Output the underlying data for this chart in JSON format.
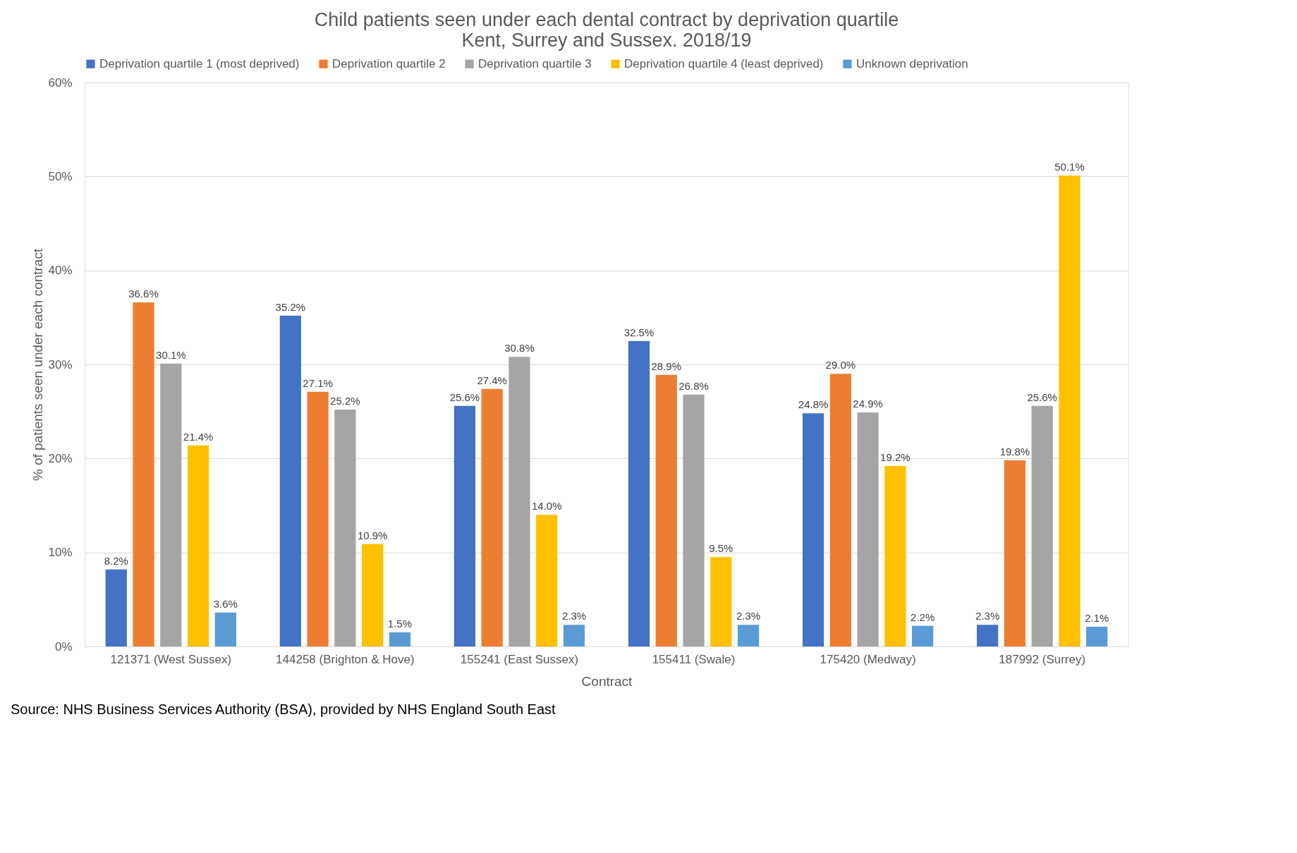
{
  "chart_data": {
    "type": "bar",
    "title": [
      "Child patients seen under each dental contract by deprivation quartile",
      "Kent, Surrey and Sussex. 2018/19"
    ],
    "xlabel": "Contract",
    "ylabel": "% of patients seen under each contract",
    "categories": [
      "121371 (West Sussex)",
      "144258 (Brighton & Hove)",
      "155241 (East Sussex)",
      "155411 (Swale)",
      "175420 (Medway)",
      "187992 (Surrey)"
    ],
    "series": [
      {
        "name": "Deprivation quartile 1 (most deprived)",
        "color": "#4472c4",
        "values": [
          8.2,
          35.2,
          25.6,
          32.5,
          24.8,
          2.3
        ],
        "value_labels": [
          "8.2%",
          "35.2%",
          "25.6%",
          "32.5%",
          "24.8%",
          "2.3%"
        ]
      },
      {
        "name": "Deprivation quartile 2",
        "color": "#ed7d31",
        "values": [
          36.6,
          27.1,
          27.4,
          28.9,
          29.0,
          19.8
        ],
        "value_labels": [
          "36.6%",
          "27.1%",
          "27.4%",
          "28.9%",
          "29.0%",
          "19.8%"
        ]
      },
      {
        "name": "Deprivation quartile 3",
        "color": "#a5a5a5",
        "values": [
          30.1,
          25.2,
          30.8,
          26.8,
          24.9,
          25.6
        ],
        "value_labels": [
          "30.1%",
          "25.2%",
          "30.8%",
          "26.8%",
          "24.9%",
          "25.6%"
        ]
      },
      {
        "name": "Deprivation quartile 4 (least deprived)",
        "color": "#ffc000",
        "values": [
          21.4,
          10.9,
          14.0,
          9.5,
          19.2,
          50.1
        ],
        "value_labels": [
          "21.4%",
          "10.9%",
          "14.0%",
          "9.5%",
          "19.2%",
          "50.1%"
        ]
      },
      {
        "name": "Unknown deprivation",
        "color": "#5b9bd5",
        "values": [
          3.6,
          1.5,
          2.3,
          2.3,
          2.2,
          2.1
        ],
        "value_labels": [
          "3.6%",
          "1.5%",
          "2.3%",
          "2.3%",
          "2.2%",
          "2.1%"
        ]
      }
    ],
    "ylim": [
      0,
      60
    ],
    "yticks": [
      {
        "value": 0,
        "label": "0%"
      },
      {
        "value": 10,
        "label": "10%"
      },
      {
        "value": 20,
        "label": "20%"
      },
      {
        "value": 30,
        "label": "30%"
      },
      {
        "value": 40,
        "label": "40%"
      },
      {
        "value": 50,
        "label": "50%"
      },
      {
        "value": 60,
        "label": "60%"
      }
    ],
    "grid": "y",
    "legend": "top",
    "annotations": [
      "Source: NHS Business Services Authority (BSA), provided by NHS England South East"
    ]
  }
}
